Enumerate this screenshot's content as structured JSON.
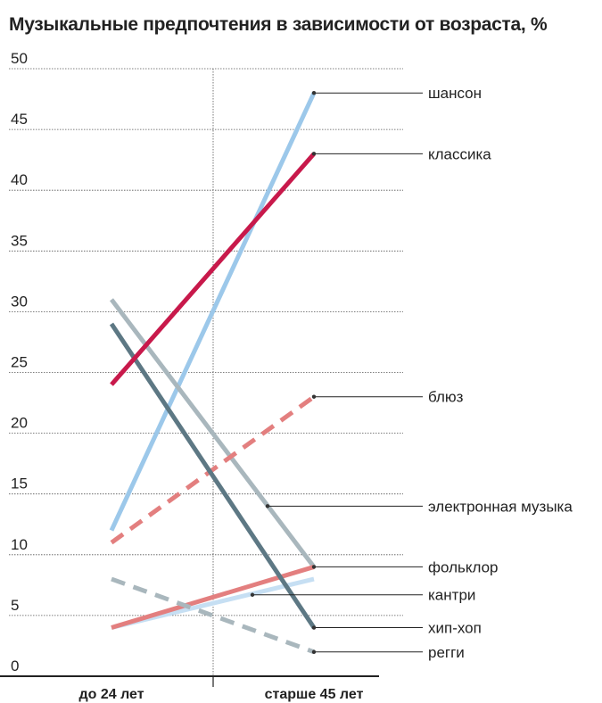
{
  "chart_data": {
    "type": "line",
    "title": "Музыкальные предпочтения в зависимости от возраста, %",
    "categories": [
      "до 24 лет",
      "старше 45 лет"
    ],
    "ylim": [
      0,
      50
    ],
    "yticks": [
      "0",
      "5",
      "10",
      "15",
      "20",
      "25",
      "30",
      "35",
      "40",
      "45",
      "50"
    ],
    "grid": true,
    "series": [
      {
        "name": "шансон",
        "values": [
          12,
          48
        ],
        "color": "#9cc8ea",
        "dashed": false
      },
      {
        "name": "классика",
        "values": [
          24,
          43
        ],
        "color": "#c8194b",
        "dashed": false
      },
      {
        "name": "блюз",
        "values": [
          11,
          23
        ],
        "color": "#e37f7f",
        "dashed": true
      },
      {
        "name": "электронная музыка",
        "values": [
          31,
          9
        ],
        "color": "#a9b7bd",
        "dashed": false
      },
      {
        "name": "фольклор",
        "values": [
          4,
          9
        ],
        "color": "#e37f7f",
        "dashed": false
      },
      {
        "name": "кантри",
        "values": [
          4,
          8
        ],
        "color": "#c6dff3",
        "dashed": false
      },
      {
        "name": "хип-хоп",
        "values": [
          29,
          4
        ],
        "color": "#5d7884",
        "dashed": false
      },
      {
        "name": "регги",
        "values": [
          8,
          2
        ],
        "color": "#a9b7bd",
        "dashed": true
      }
    ]
  }
}
